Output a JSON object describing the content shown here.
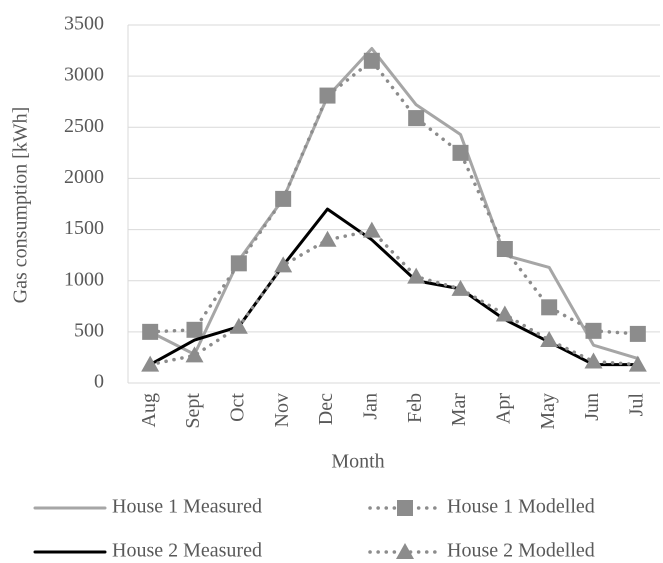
{
  "chart_data": {
    "type": "line",
    "x_label": "Month",
    "y_label": "Gas consumption [kWh]",
    "categories": [
      "Aug",
      "Sept",
      "Oct",
      "Nov",
      "Dec",
      "Jan",
      "Feb",
      "Mar",
      "Apr",
      "May",
      "Jun",
      "Jul"
    ],
    "series": [
      {
        "name": "House 1 Measured",
        "color": "#a6a6a6",
        "style": "solid",
        "marker": "none",
        "values": [
          500,
          280,
          1200,
          1800,
          2800,
          3270,
          2720,
          2430,
          1250,
          1130,
          370,
          240
        ]
      },
      {
        "name": "House 1 Modelled",
        "color": "#8c8c8c",
        "style": "dotted",
        "marker": "square",
        "values": [
          500,
          520,
          1170,
          1800,
          2810,
          3150,
          2590,
          2250,
          1310,
          740,
          510,
          480
        ]
      },
      {
        "name": "House 2 Measured",
        "color": "#000000",
        "style": "solid",
        "marker": "none",
        "values": [
          180,
          420,
          550,
          1150,
          1700,
          1400,
          1000,
          920,
          620,
          400,
          180,
          180
        ]
      },
      {
        "name": "House 2 Modelled",
        "color": "#8c8c8c",
        "style": "dotted",
        "marker": "triangle",
        "values": [
          180,
          270,
          550,
          1150,
          1400,
          1490,
          1040,
          920,
          670,
          420,
          210,
          180
        ]
      }
    ],
    "ylim": [
      0,
      3500
    ],
    "yticks": [
      0,
      500,
      1000,
      1500,
      2000,
      2500,
      3000,
      3500
    ],
    "grid": true,
    "legend": "bottom"
  }
}
